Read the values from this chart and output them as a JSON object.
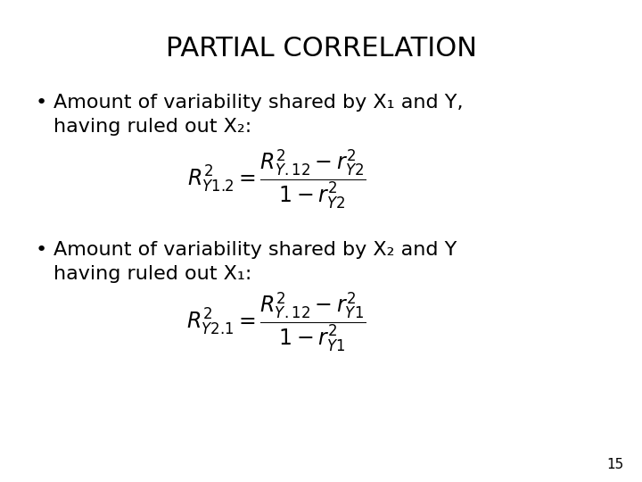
{
  "title": "PARTIAL CORRELATION",
  "title_fontsize": 22,
  "title_fontweight": "normal",
  "background_color": "#ffffff",
  "text_color": "#000000",
  "bullet1_line1": "Amount of variability shared by X₁ and Y,",
  "bullet1_line2": "having ruled out X₂:",
  "formula1": "$R^2_{Y1.2} = \\dfrac{R^2_{Y.12} - r^2_{Y2}}{1 - r^2_{Y2}}$",
  "bullet2_line1": "Amount of variability shared by X₂ and Y",
  "bullet2_line2": "having ruled out X₁:",
  "formula2": "$R^2_{Y2.1} = \\dfrac{R^2_{Y.12} - r^2_{Y1}}{1 - r^2_{Y1}}$",
  "page_number": "15",
  "body_fontsize": 16,
  "formula_fontsize": 17
}
